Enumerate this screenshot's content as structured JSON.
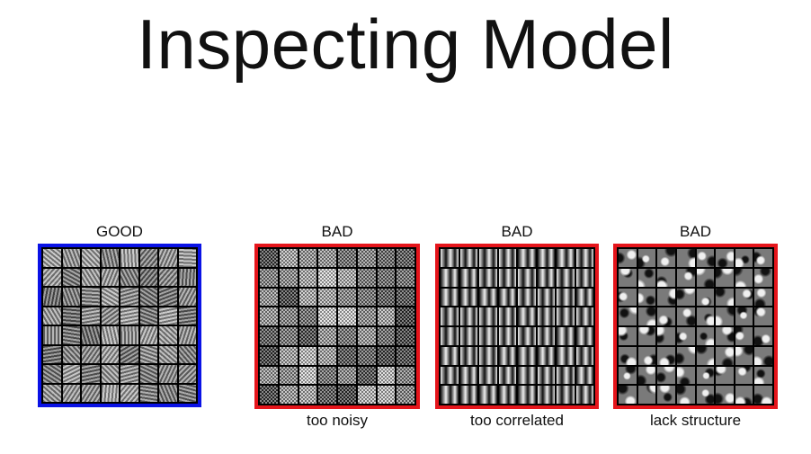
{
  "slide": {
    "title": "Inspecting Model"
  },
  "panels": [
    {
      "heading": "GOOD",
      "caption": "",
      "border_color": "#0a12e6",
      "pattern": "gabor"
    },
    {
      "heading": "BAD",
      "caption": "too noisy",
      "border_color": "#e5151b",
      "pattern": "noisy"
    },
    {
      "heading": "BAD",
      "caption": "too correlated",
      "border_color": "#e5151b",
      "pattern": "correlated"
    },
    {
      "heading": "BAD",
      "caption": "lack structure",
      "border_color": "#e5151b",
      "pattern": "blobs"
    }
  ]
}
